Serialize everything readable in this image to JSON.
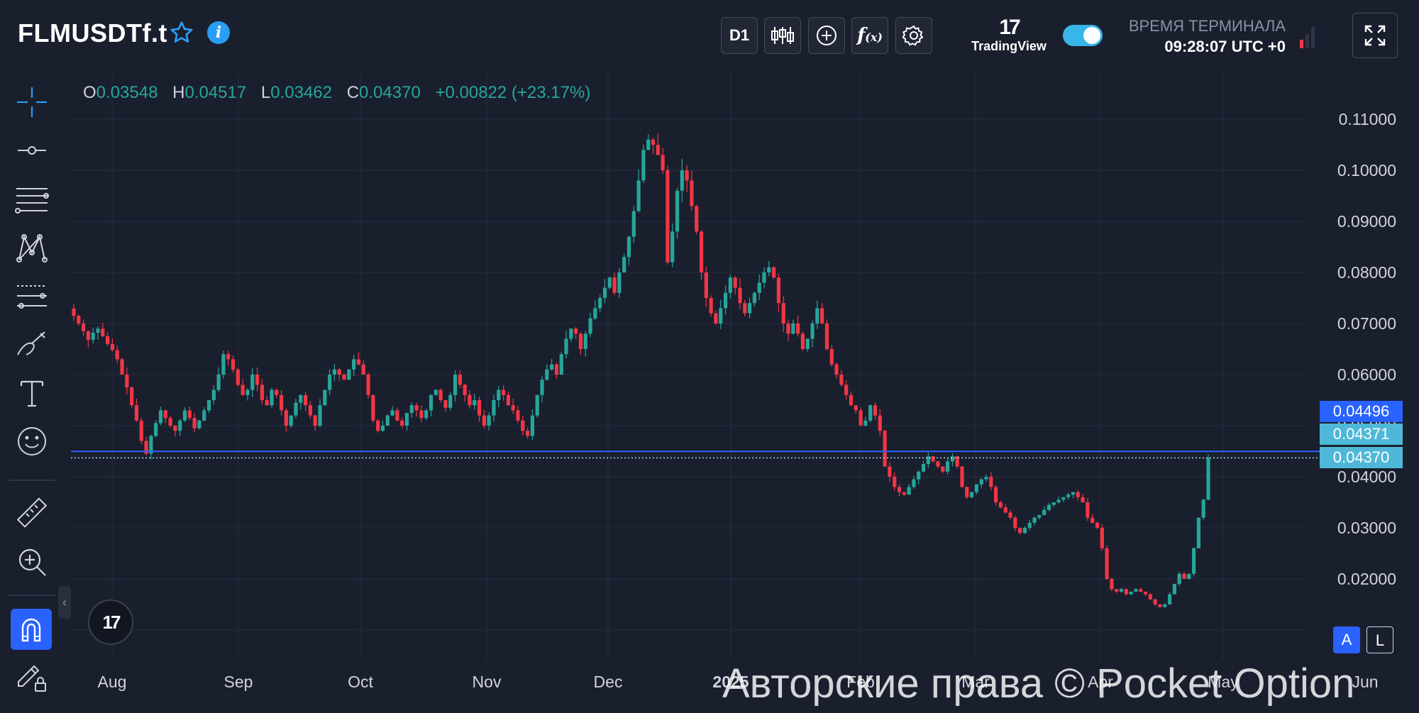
{
  "header": {
    "symbol": "FLMUSDTf.t",
    "timeframe_label": "D1",
    "tv_mark": "17",
    "tv_word": "TradingView",
    "terminal_label": "ВРЕМЯ ТЕРМИНАЛА",
    "terminal_time": "09:28:07 UTC +0",
    "toggle_on": true
  },
  "ohlc": {
    "o_key": "O",
    "o": "0.03548",
    "h_key": "H",
    "h": "0.04517",
    "l_key": "L",
    "l": "0.03462",
    "c_key": "C",
    "c": "0.04370",
    "change": "+0.00822 (+23.17%)"
  },
  "price_tags": {
    "line_price": "0.04496",
    "bid": "0.04371",
    "last": "0.04370"
  },
  "scale_buttons": {
    "auto": "A",
    "log": "L"
  },
  "tv_badge": "17",
  "watermark": "Авторские права © Pocket Option",
  "colors": {
    "up": "#26a69a",
    "down": "#f23645",
    "accent": "#2962ff",
    "background": "#1a1f2e"
  },
  "icons": [
    "star-icon",
    "info-icon",
    "candles-icon",
    "plus-circle-icon",
    "function-icon",
    "gear-icon",
    "fullscreen-icon",
    "crosshair-icon",
    "trendline-icon",
    "fib-icon",
    "pattern-icon",
    "projection-icon",
    "brush-icon",
    "text-icon",
    "emoji-icon",
    "ruler-icon",
    "zoom-in-icon",
    "magnet-icon",
    "lock-draw-icon"
  ],
  "chart_data": {
    "type": "candlestick",
    "title": "FLMUSDTf.t D1",
    "x_ticks": [
      "Aug",
      "Sep",
      "Oct",
      "Nov",
      "Dec",
      "2025",
      "Feb",
      "Mar",
      "Apr",
      "May",
      "Jun"
    ],
    "y_ticks": [
      "0.11000",
      "0.10000",
      "0.09000",
      "0.08000",
      "0.07000",
      "0.06000",
      "0.05000",
      "0.04000",
      "0.03000",
      "0.02000"
    ],
    "ylim": [
      0.0105,
      0.1164
    ],
    "grid": true,
    "horizontal_line": 0.04496,
    "last_price": 0.0437,
    "approx_daily_closes": [
      0.0715,
      0.07,
      0.0685,
      0.0668,
      0.0682,
      0.069,
      0.0675,
      0.066,
      0.0648,
      0.063,
      0.06,
      0.0575,
      0.054,
      0.051,
      0.047,
      0.0445,
      0.048,
      0.0505,
      0.053,
      0.0515,
      0.05,
      0.049,
      0.051,
      0.053,
      0.0515,
      0.0495,
      0.051,
      0.053,
      0.055,
      0.057,
      0.06,
      0.064,
      0.063,
      0.061,
      0.058,
      0.056,
      0.057,
      0.06,
      0.058,
      0.055,
      0.054,
      0.057,
      0.056,
      0.053,
      0.05,
      0.052,
      0.0545,
      0.056,
      0.054,
      0.052,
      0.05,
      0.054,
      0.057,
      0.06,
      0.061,
      0.06,
      0.059,
      0.061,
      0.063,
      0.062,
      0.06,
      0.056,
      0.051,
      0.049,
      0.05,
      0.052,
      0.053,
      0.051,
      0.05,
      0.0525,
      0.054,
      0.053,
      0.0515,
      0.053,
      0.056,
      0.057,
      0.055,
      0.0535,
      0.056,
      0.06,
      0.058,
      0.056,
      0.054,
      0.055,
      0.052,
      0.05,
      0.052,
      0.055,
      0.057,
      0.056,
      0.054,
      0.053,
      0.051,
      0.049,
      0.048,
      0.052,
      0.056,
      0.059,
      0.061,
      0.062,
      0.06,
      0.064,
      0.067,
      0.069,
      0.068,
      0.065,
      0.068,
      0.071,
      0.073,
      0.075,
      0.077,
      0.079,
      0.076,
      0.08,
      0.083,
      0.087,
      0.092,
      0.098,
      0.104,
      0.106,
      0.105,
      0.103,
      0.1,
      0.082,
      0.088,
      0.096,
      0.1,
      0.098,
      0.093,
      0.088,
      0.08,
      0.075,
      0.072,
      0.07,
      0.073,
      0.076,
      0.079,
      0.077,
      0.074,
      0.072,
      0.074,
      0.076,
      0.078,
      0.08,
      0.081,
      0.079,
      0.074,
      0.07,
      0.068,
      0.07,
      0.068,
      0.065,
      0.067,
      0.07,
      0.073,
      0.07,
      0.065,
      0.062,
      0.06,
      0.058,
      0.056,
      0.054,
      0.053,
      0.05,
      0.051,
      0.054,
      0.052,
      0.049,
      0.042,
      0.04,
      0.038,
      0.037,
      0.0365,
      0.038,
      0.0395,
      0.041,
      0.0425,
      0.044,
      0.043,
      0.042,
      0.041,
      0.043,
      0.044,
      0.042,
      0.038,
      0.036,
      0.037,
      0.0385,
      0.0395,
      0.04,
      0.038,
      0.035,
      0.034,
      0.033,
      0.032,
      0.03,
      0.029,
      0.03,
      0.031,
      0.032,
      0.0325,
      0.0335,
      0.0345,
      0.035,
      0.0355,
      0.036,
      0.0365,
      0.037,
      0.036,
      0.035,
      0.032,
      0.031,
      0.03,
      0.026,
      0.02,
      0.018,
      0.0175,
      0.018,
      0.017,
      0.0175,
      0.018,
      0.0175,
      0.017,
      0.016,
      0.015,
      0.0145,
      0.015,
      0.017,
      0.019,
      0.021,
      0.02,
      0.021,
      0.026,
      0.032,
      0.0355,
      0.0437
    ]
  }
}
